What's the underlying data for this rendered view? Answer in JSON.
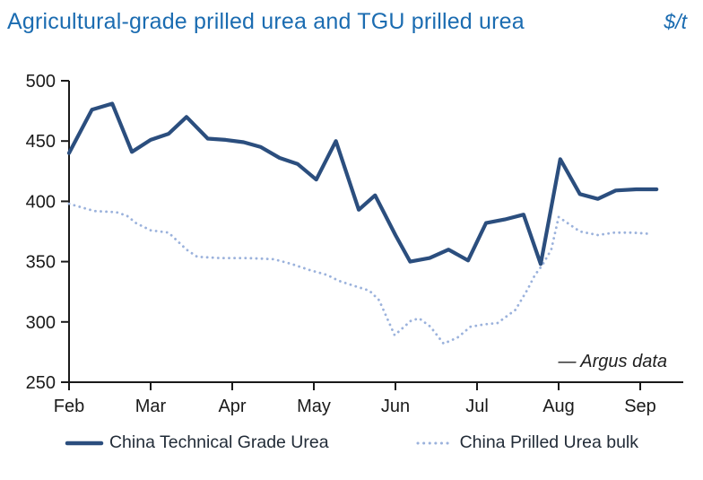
{
  "chart_data": {
    "type": "line",
    "title": "Agricultural-grade prilled urea and TGU prilled urea",
    "unit_label": "$/t",
    "source_note": "— Argus data",
    "xlabel": "",
    "ylabel": "",
    "x_tick_labels": [
      "Feb",
      "Mar",
      "Apr",
      "May",
      "Jun",
      "Jul",
      "Aug",
      "Sep"
    ],
    "y_ticks": [
      250,
      300,
      350,
      400,
      450,
      500
    ],
    "ylim": [
      250,
      500
    ],
    "xlim_months": [
      0,
      7.55
    ],
    "grid": false,
    "legend_position": "bottom",
    "axis_color": "#1a1a1a",
    "title_color": "#1b6cb1",
    "series": [
      {
        "name": "China Technical Grade Urea",
        "style": "solid",
        "color": "#2b4e7e",
        "x": [
          0.0,
          0.28,
          0.53,
          0.77,
          1.0,
          1.22,
          1.44,
          1.7,
          1.92,
          2.14,
          2.35,
          2.58,
          2.8,
          3.03,
          3.27,
          3.55,
          3.75,
          4.0,
          4.18,
          4.42,
          4.65,
          4.89,
          5.11,
          5.34,
          5.57,
          5.78,
          6.02,
          6.26,
          6.48,
          6.7,
          6.95,
          7.2
        ],
        "y": [
          440,
          476,
          481,
          441,
          451,
          456,
          470,
          452,
          451,
          449,
          445,
          436,
          431,
          418,
          450,
          393,
          405,
          372,
          350,
          353,
          360,
          351,
          382,
          385,
          389,
          348,
          435,
          406,
          402,
          409,
          410,
          410
        ]
      },
      {
        "name": "China Prilled Urea bulk",
        "style": "dotted",
        "color": "#9bb2dc",
        "x": [
          0.0,
          0.31,
          0.58,
          0.71,
          0.82,
          1.0,
          1.22,
          1.44,
          1.57,
          1.85,
          2.18,
          2.51,
          2.73,
          2.95,
          3.16,
          3.31,
          3.49,
          3.68,
          3.8,
          3.99,
          4.19,
          4.29,
          4.43,
          4.59,
          4.76,
          4.92,
          5.09,
          5.25,
          5.47,
          5.62,
          5.71,
          5.8,
          5.91,
          6.0,
          6.13,
          6.26,
          6.48,
          6.68,
          6.9,
          7.14
        ],
        "y": [
          398,
          392,
          391,
          388,
          382,
          376,
          374,
          360,
          354,
          353,
          353,
          352,
          348,
          343,
          339,
          334,
          330,
          326,
          318,
          289,
          301,
          303,
          296,
          282,
          287,
          296,
          298,
          299,
          310,
          327,
          339,
          347,
          360,
          387,
          381,
          375,
          372,
          374,
          374,
          373
        ]
      }
    ]
  }
}
